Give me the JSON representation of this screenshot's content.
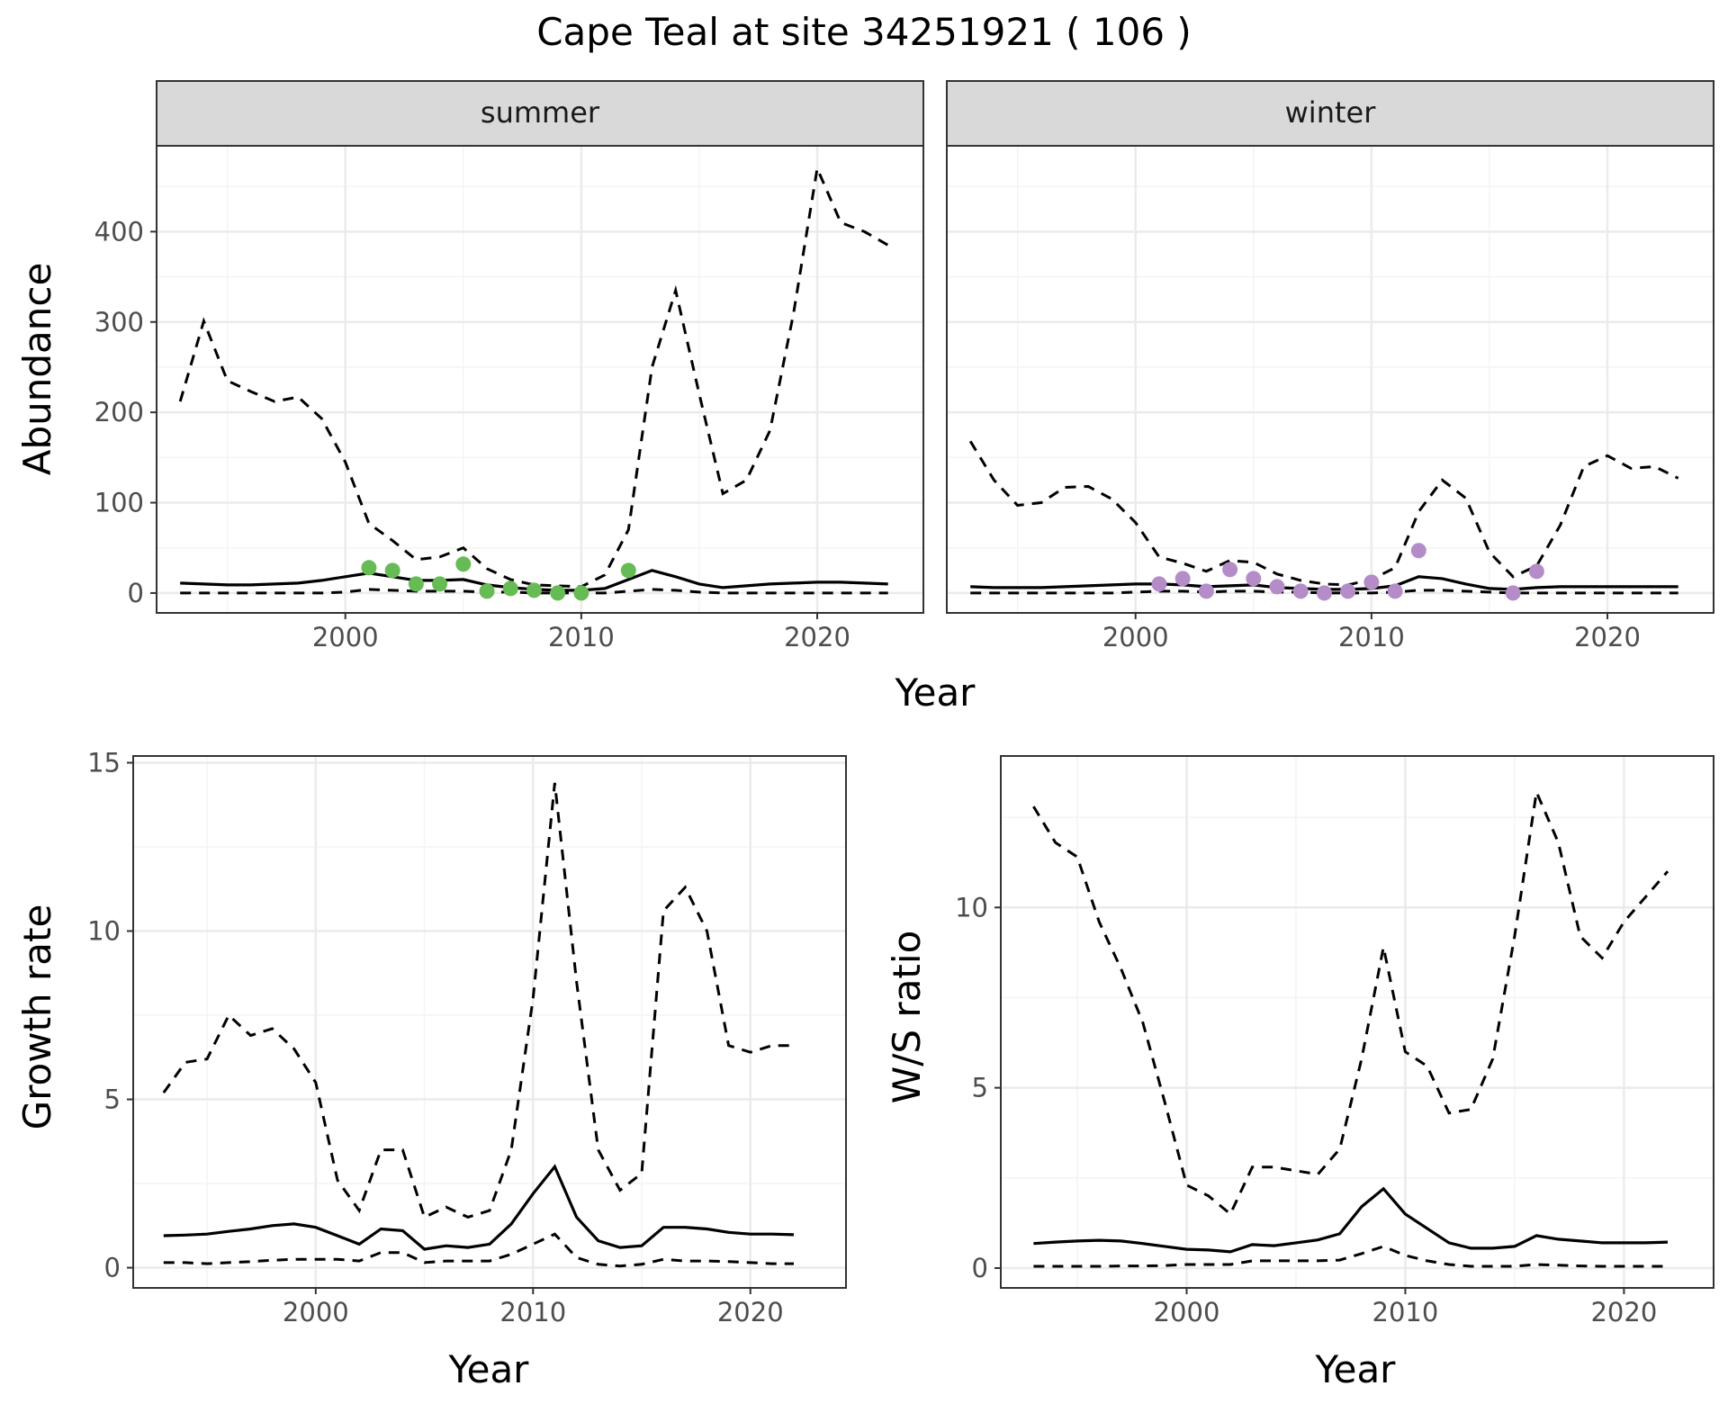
{
  "title": "Cape Teal at site 34251921 ( 106 )",
  "colors": {
    "summer_points": "#66bb55",
    "winter_points": "#b48cc8",
    "lines": "#000000",
    "grid_major": "#ebebeb",
    "grid_minor": "#f4f4f4",
    "strip_fill": "#d9d9d9",
    "panel_border": "#333333"
  },
  "chart_data": [
    {
      "id": "abundance",
      "type": "line",
      "ylabel": "Abundance",
      "xlabel": "Year",
      "xlim": [
        1992,
        2024.5
      ],
      "ylim": [
        -22,
        495
      ],
      "xticks": [
        2000,
        2010,
        2020
      ],
      "yticks": [
        0,
        100,
        200,
        300,
        400
      ],
      "facets": [
        {
          "strip": "summer",
          "point_color_key": "summer_points",
          "x": [
            1993,
            1994,
            1995,
            1996,
            1997,
            1998,
            1999,
            2000,
            2001,
            2002,
            2003,
            2004,
            2005,
            2006,
            2007,
            2008,
            2009,
            2010,
            2011,
            2012,
            2013,
            2014,
            2015,
            2016,
            2017,
            2018,
            2019,
            2020,
            2021,
            2022,
            2023
          ],
          "mean": [
            11,
            10,
            9,
            9,
            10,
            11,
            14,
            18,
            22,
            18,
            14,
            14,
            15,
            9,
            6,
            4,
            3,
            3,
            5,
            15,
            25,
            18,
            10,
            6,
            8,
            10,
            11,
            12,
            12,
            11,
            10
          ],
          "lower": [
            0,
            0,
            0,
            0,
            0,
            0,
            0,
            1,
            4,
            3,
            2,
            2,
            2,
            1,
            1,
            0,
            0,
            0,
            0,
            2,
            4,
            3,
            1,
            0,
            0,
            0,
            0,
            0,
            0,
            0,
            0
          ],
          "upper": [
            212,
            301,
            235,
            223,
            212,
            217,
            193,
            145,
            77,
            58,
            37,
            40,
            50,
            27,
            15,
            9,
            8,
            7,
            20,
            70,
            250,
            335,
            220,
            110,
            125,
            180,
            310,
            470,
            410,
            400,
            385
          ],
          "points": [
            {
              "x": 2001,
              "y": 28
            },
            {
              "x": 2002,
              "y": 25
            },
            {
              "x": 2003,
              "y": 10
            },
            {
              "x": 2004,
              "y": 10
            },
            {
              "x": 2005,
              "y": 32
            },
            {
              "x": 2006,
              "y": 2
            },
            {
              "x": 2007,
              "y": 5
            },
            {
              "x": 2008,
              "y": 3
            },
            {
              "x": 2009,
              "y": 0
            },
            {
              "x": 2010,
              "y": 0
            },
            {
              "x": 2012,
              "y": 25
            }
          ]
        },
        {
          "strip": "winter",
          "point_color_key": "winter_points",
          "x": [
            1993,
            1994,
            1995,
            1996,
            1997,
            1998,
            1999,
            2000,
            2001,
            2002,
            2003,
            2004,
            2005,
            2006,
            2007,
            2008,
            2009,
            2010,
            2011,
            2012,
            2013,
            2014,
            2015,
            2016,
            2017,
            2018,
            2019,
            2020,
            2021,
            2022,
            2023
          ],
          "mean": [
            7,
            6,
            6,
            6,
            7,
            8,
            9,
            10,
            10,
            9,
            7,
            8,
            9,
            6,
            5,
            4,
            4,
            5,
            8,
            18,
            16,
            10,
            5,
            4,
            6,
            7,
            7,
            7,
            7,
            7,
            7
          ],
          "lower": [
            0,
            0,
            0,
            0,
            0,
            0,
            0,
            1,
            2,
            2,
            1,
            2,
            2,
            1,
            1,
            0,
            0,
            0,
            1,
            3,
            3,
            2,
            1,
            0,
            0,
            0,
            0,
            0,
            0,
            0,
            0
          ],
          "upper": [
            168,
            125,
            97,
            100,
            117,
            118,
            104,
            78,
            40,
            33,
            24,
            36,
            34,
            21,
            14,
            10,
            9,
            15,
            28,
            90,
            125,
            105,
            45,
            18,
            30,
            75,
            140,
            152,
            138,
            140,
            127
          ],
          "points": [
            {
              "x": 2001,
              "y": 10
            },
            {
              "x": 2002,
              "y": 16
            },
            {
              "x": 2003,
              "y": 2
            },
            {
              "x": 2004,
              "y": 26
            },
            {
              "x": 2005,
              "y": 16
            },
            {
              "x": 2006,
              "y": 7
            },
            {
              "x": 2007,
              "y": 2
            },
            {
              "x": 2008,
              "y": 0
            },
            {
              "x": 2009,
              "y": 2
            },
            {
              "x": 2010,
              "y": 12
            },
            {
              "x": 2011,
              "y": 2
            },
            {
              "x": 2012,
              "y": 47
            },
            {
              "x": 2016,
              "y": 0
            },
            {
              "x": 2017,
              "y": 24
            }
          ]
        }
      ]
    },
    {
      "id": "growth",
      "type": "line",
      "ylabel": "Growth rate",
      "xlabel": "Year",
      "xlim": [
        1991.6,
        2024.4
      ],
      "ylim": [
        -0.6,
        15.2
      ],
      "xticks": [
        2000,
        2010,
        2020
      ],
      "yticks": [
        0,
        5,
        10,
        15
      ],
      "x": [
        1993,
        1994,
        1995,
        1996,
        1997,
        1998,
        1999,
        2000,
        2001,
        2002,
        2003,
        2004,
        2005,
        2006,
        2007,
        2008,
        2009,
        2010,
        2011,
        2012,
        2013,
        2014,
        2015,
        2016,
        2017,
        2018,
        2019,
        2020,
        2021,
        2022
      ],
      "mean": [
        0.95,
        0.97,
        1.0,
        1.08,
        1.15,
        1.25,
        1.3,
        1.2,
        0.95,
        0.7,
        1.15,
        1.1,
        0.55,
        0.65,
        0.6,
        0.7,
        1.3,
        2.2,
        3.0,
        1.5,
        0.8,
        0.6,
        0.65,
        1.2,
        1.2,
        1.15,
        1.05,
        1.0,
        1.0,
        0.98
      ],
      "lower": [
        0.15,
        0.15,
        0.12,
        0.15,
        0.18,
        0.22,
        0.25,
        0.25,
        0.25,
        0.2,
        0.45,
        0.45,
        0.15,
        0.2,
        0.2,
        0.2,
        0.4,
        0.7,
        1.0,
        0.3,
        0.1,
        0.05,
        0.1,
        0.25,
        0.2,
        0.2,
        0.18,
        0.15,
        0.12,
        0.12
      ],
      "upper": [
        5.2,
        6.1,
        6.2,
        7.5,
        6.9,
        7.1,
        6.5,
        5.5,
        2.6,
        1.7,
        3.5,
        3.5,
        1.5,
        1.8,
        1.5,
        1.7,
        3.5,
        8.0,
        14.4,
        8.5,
        3.5,
        2.3,
        2.8,
        10.6,
        11.3,
        10.0,
        6.6,
        6.4,
        6.6,
        6.6
      ]
    },
    {
      "id": "ws_ratio",
      "type": "line",
      "ylabel": "W/S ratio",
      "xlabel": "Year",
      "xlim": [
        1991.5,
        2024.1
      ],
      "ylim": [
        -0.55,
        14.2
      ],
      "xticks": [
        2000,
        2010,
        2020
      ],
      "yticks": [
        0,
        5,
        10
      ],
      "x": [
        1993,
        1994,
        1995,
        1996,
        1997,
        1998,
        1999,
        2000,
        2001,
        2002,
        2003,
        2004,
        2005,
        2006,
        2007,
        2008,
        2009,
        2010,
        2011,
        2012,
        2013,
        2014,
        2015,
        2016,
        2017,
        2018,
        2019,
        2020,
        2021,
        2022
      ],
      "mean": [
        0.68,
        0.72,
        0.75,
        0.77,
        0.75,
        0.68,
        0.6,
        0.52,
        0.5,
        0.45,
        0.65,
        0.62,
        0.7,
        0.78,
        0.95,
        1.7,
        2.2,
        1.5,
        1.1,
        0.7,
        0.55,
        0.55,
        0.6,
        0.9,
        0.8,
        0.75,
        0.7,
        0.7,
        0.7,
        0.72
      ],
      "lower": [
        0.05,
        0.05,
        0.05,
        0.05,
        0.06,
        0.06,
        0.07,
        0.1,
        0.1,
        0.1,
        0.2,
        0.2,
        0.2,
        0.2,
        0.22,
        0.4,
        0.6,
        0.35,
        0.2,
        0.1,
        0.05,
        0.05,
        0.05,
        0.1,
        0.08,
        0.06,
        0.05,
        0.05,
        0.05,
        0.05
      ],
      "upper": [
        12.8,
        11.8,
        11.4,
        9.6,
        8.3,
        6.8,
        4.6,
        2.3,
        2.0,
        1.5,
        2.8,
        2.8,
        2.7,
        2.6,
        3.3,
        5.8,
        8.9,
        6.0,
        5.6,
        4.3,
        4.4,
        5.8,
        9.2,
        13.2,
        11.8,
        9.2,
        8.6,
        9.6,
        10.3,
        11.0
      ]
    }
  ]
}
